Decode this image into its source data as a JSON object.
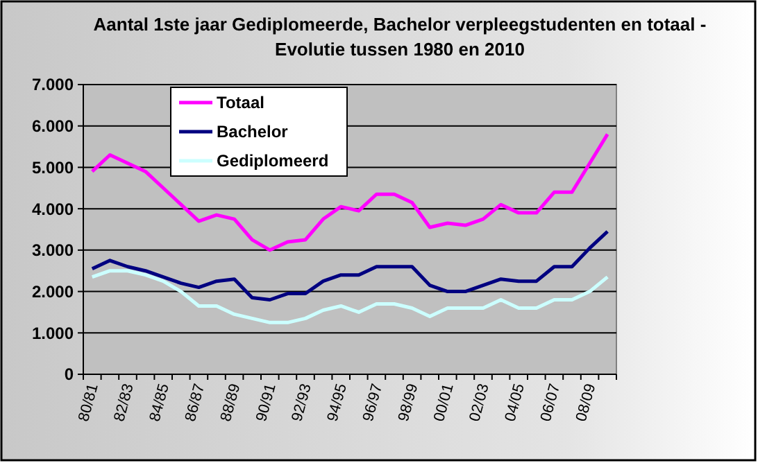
{
  "chart_data": {
    "type": "line",
    "title": "Aantal 1ste jaar Gediplomeerde, Bachelor verpleegstudenten en totaal - Evolutie tussen 1980 en 2010",
    "categories": [
      "80/81",
      null,
      "82/83",
      null,
      "84/85",
      null,
      "86/87",
      null,
      "88/89",
      null,
      "90/91",
      null,
      "92/93",
      null,
      "94/95",
      null,
      "96/97",
      null,
      "98/99",
      null,
      "00/01",
      null,
      "02/03",
      null,
      "04/05",
      null,
      "06/07",
      null,
      "08/09",
      null
    ],
    "series": [
      {
        "name": "Totaal",
        "color": "#ff00ff",
        "values": [
          4900,
          5300,
          5100,
          4900,
          4500,
          4100,
          3700,
          3850,
          3750,
          3250,
          3000,
          3200,
          3250,
          3750,
          4050,
          3950,
          4350,
          4350,
          4150,
          3550,
          3650,
          3600,
          3750,
          4100,
          3900,
          3900,
          4400,
          4400,
          5100,
          5800
        ]
      },
      {
        "name": "Bachelor",
        "color": "#000080",
        "values": [
          2550,
          2750,
          2600,
          2500,
          2350,
          2200,
          2100,
          2250,
          2300,
          1850,
          1800,
          1950,
          1950,
          2250,
          2400,
          2400,
          2600,
          2600,
          2600,
          2150,
          2000,
          2000,
          2150,
          2300,
          2250,
          2250,
          2600,
          2600,
          3050,
          3450
        ]
      },
      {
        "name": "Gediplomeerd",
        "color": "#ccffff",
        "values": [
          2350,
          2500,
          2500,
          2400,
          2250,
          2000,
          1650,
          1650,
          1450,
          1350,
          1250,
          1250,
          1350,
          1550,
          1650,
          1500,
          1700,
          1700,
          1600,
          1400,
          1600,
          1600,
          1600,
          1800,
          1600,
          1600,
          1800,
          1800,
          2000,
          2350
        ]
      }
    ],
    "ylim": [
      0,
      7000
    ],
    "yticks": [
      0,
      {
        "value": 1000,
        "label": "1.000"
      },
      {
        "value": 2000,
        "label": "2.000"
      },
      {
        "value": 3000,
        "label": "3.000"
      },
      {
        "value": 4000,
        "label": "4.000"
      },
      {
        "value": 5000,
        "label": "5.000"
      },
      {
        "value": 6000,
        "label": "6.000"
      },
      {
        "value": 7000,
        "label": "7.000"
      }
    ],
    "grid": "y",
    "legend": "top left",
    "marker": "none",
    "line_style": "solid"
  }
}
